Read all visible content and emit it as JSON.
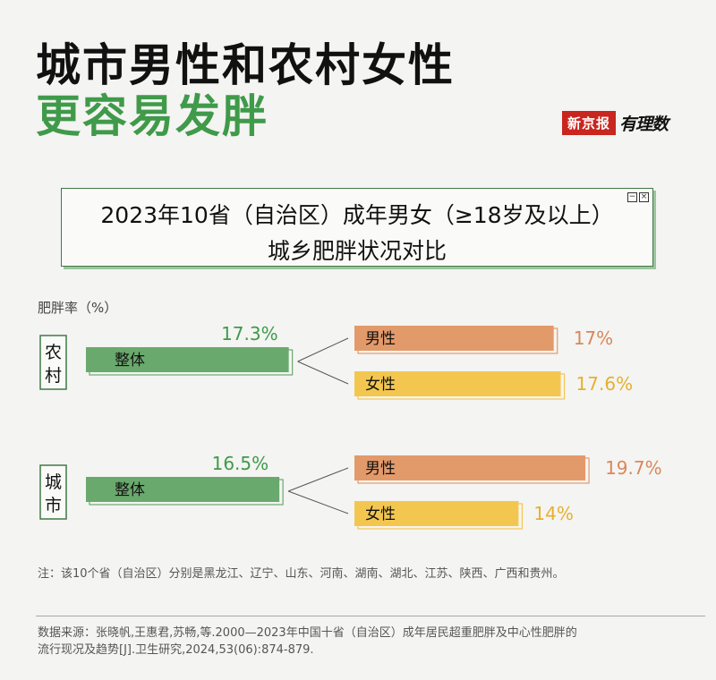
{
  "title": {
    "line1": "城市男性和农村女性",
    "line2": "更容易发胖"
  },
  "logo": {
    "box_text": "新京报",
    "script_text": "有理数"
  },
  "subtitle": {
    "line1": "2023年10省（自治区）成年男女（≥18岁及以上）",
    "line2": "城乡肥胖状况对比"
  },
  "unit_label": "肥胖率（%）",
  "colors": {
    "green": "#6aa96d",
    "green_text": "#3f9a4a",
    "orange": "#e39a6a",
    "orange_text": "#d9875a",
    "yellow": "#f3c74f",
    "yellow_text": "#e7b02d"
  },
  "chart_data": {
    "type": "bar",
    "unit": "%",
    "groups": [
      {
        "name": "农村",
        "overall": {
          "label": "整体",
          "value": 17.3,
          "value_text": "17.3%"
        },
        "male": {
          "label": "男性",
          "value": 17.0,
          "value_text": "17%"
        },
        "female": {
          "label": "女性",
          "value": 17.6,
          "value_text": "17.6%"
        }
      },
      {
        "name": "城市",
        "overall": {
          "label": "整体",
          "value": 16.5,
          "value_text": "16.5%"
        },
        "male": {
          "label": "男性",
          "value": 19.7,
          "value_text": "19.7%"
        },
        "female": {
          "label": "女性",
          "value": 14.0,
          "value_text": "14%"
        }
      }
    ]
  },
  "note": "注：该10个省（自治区）分别是黑龙江、辽宁、山东、河南、湖南、湖北、江苏、陕西、广西和贵州。",
  "source": {
    "line1": "数据来源：张晓帆,王惠君,苏畅,等.2000—2023年中国十省（自治区）成年居民超重肥胖及中心性肥胖的",
    "line2": "流行现况及趋势[J].卫生研究,2024,53(06):874-879."
  }
}
